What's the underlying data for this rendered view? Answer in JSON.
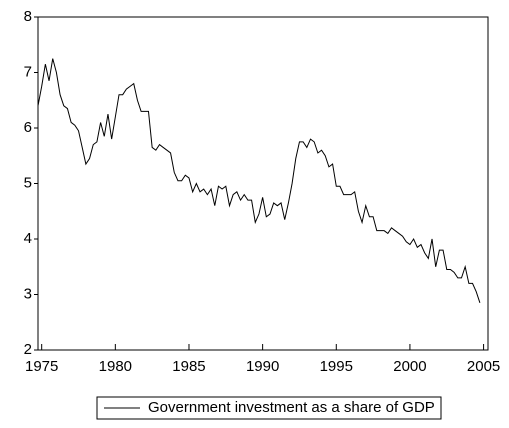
{
  "chart_data": {
    "type": "line",
    "x": [
      1974.75,
      1975,
      1975.25,
      1975.5,
      1975.75,
      1976,
      1976.25,
      1976.5,
      1976.75,
      1977,
      1977.25,
      1977.5,
      1977.75,
      1978,
      1978.25,
      1978.5,
      1978.75,
      1979,
      1979.25,
      1979.5,
      1979.75,
      1980,
      1980.25,
      1980.5,
      1980.75,
      1981,
      1981.25,
      1981.5,
      1981.75,
      1982,
      1982.25,
      1982.5,
      1982.75,
      1983,
      1983.25,
      1983.5,
      1983.75,
      1984,
      1984.25,
      1984.5,
      1984.75,
      1985,
      1985.25,
      1985.5,
      1985.75,
      1986,
      1986.25,
      1986.5,
      1986.75,
      1987,
      1987.25,
      1987.5,
      1987.75,
      1988,
      1988.25,
      1988.5,
      1988.75,
      1989,
      1989.25,
      1989.5,
      1989.75,
      1990,
      1990.25,
      1990.5,
      1990.75,
      1991,
      1991.25,
      1991.5,
      1991.75,
      1992,
      1992.25,
      1992.5,
      1992.75,
      1993,
      1993.25,
      1993.5,
      1993.75,
      1994,
      1994.25,
      1994.5,
      1994.75,
      1995,
      1995.25,
      1995.5,
      1995.75,
      1996,
      1996.25,
      1996.5,
      1996.75,
      1997,
      1997.25,
      1997.5,
      1997.75,
      1998,
      1998.25,
      1998.5,
      1998.75,
      1999,
      1999.25,
      1999.5,
      1999.75,
      2000,
      2000.25,
      2000.5,
      2000.75,
      2001,
      2001.25,
      2001.5,
      2001.75,
      2002,
      2002.25,
      2002.5,
      2002.75,
      2003,
      2003.25,
      2003.5,
      2003.75,
      2004,
      2004.25,
      2004.5,
      2004.75
    ],
    "series": [
      {
        "name": "Government investment as a share of GDP",
        "color": "#000000",
        "values": [
          6.4,
          6.75,
          7.15,
          6.85,
          7.25,
          7.0,
          6.6,
          6.4,
          6.35,
          6.1,
          6.05,
          5.95,
          5.65,
          5.35,
          5.45,
          5.7,
          5.75,
          6.1,
          5.85,
          6.25,
          5.8,
          6.2,
          6.6,
          6.6,
          6.7,
          6.75,
          6.8,
          6.5,
          6.3,
          6.3,
          6.3,
          5.65,
          5.6,
          5.7,
          5.65,
          5.6,
          5.55,
          5.2,
          5.05,
          5.05,
          5.15,
          5.1,
          4.85,
          5.0,
          4.85,
          4.9,
          4.8,
          4.9,
          4.6,
          4.95,
          4.9,
          4.95,
          4.6,
          4.8,
          4.85,
          4.7,
          4.8,
          4.7,
          4.7,
          4.3,
          4.45,
          4.75,
          4.4,
          4.45,
          4.65,
          4.6,
          4.65,
          4.35,
          4.65,
          5.0,
          5.45,
          5.75,
          5.75,
          5.65,
          5.8,
          5.75,
          5.55,
          5.6,
          5.5,
          5.3,
          5.35,
          4.95,
          4.95,
          4.8,
          4.8,
          4.8,
          4.85,
          4.5,
          4.3,
          4.6,
          4.4,
          4.4,
          4.15,
          4.15,
          4.15,
          4.1,
          4.2,
          4.15,
          4.1,
          4.05,
          3.95,
          3.9,
          4.0,
          3.85,
          3.9,
          3.75,
          3.65,
          4.0,
          3.5,
          3.8,
          3.8,
          3.45,
          3.45,
          3.4,
          3.3,
          3.3,
          3.5,
          3.2,
          3.2,
          3.05,
          2.85
        ]
      }
    ],
    "xlim": [
      1974.75,
      2005.3
    ],
    "xticks": [
      1975,
      1980,
      1985,
      1990,
      1995,
      2000,
      2005
    ],
    "ylim": [
      2,
      8
    ],
    "yticks": [
      2,
      3,
      4,
      5,
      6,
      7,
      8
    ],
    "grid": false,
    "legend": "bottom"
  }
}
